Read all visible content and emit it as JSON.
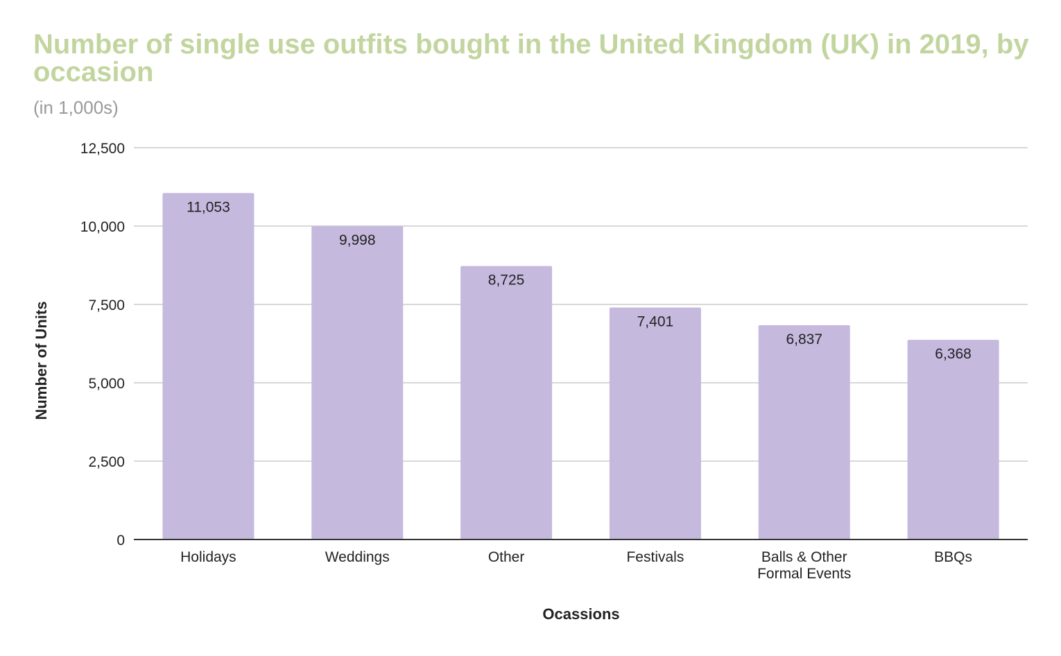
{
  "chart_data": {
    "type": "bar",
    "title": "Number of single use outfits bought in the United Kingdom (UK) in 2019, by occasion",
    "subtitle": "(in 1,000s)",
    "xlabel": "Ocassions",
    "ylabel": "Number of Units",
    "categories": [
      [
        "Holidays"
      ],
      [
        "Weddings"
      ],
      [
        "Other"
      ],
      [
        "Festivals"
      ],
      [
        "Balls & Other",
        "Formal Events"
      ],
      [
        "BBQs"
      ]
    ],
    "values": [
      11053,
      9998,
      8725,
      7401,
      6837,
      6368
    ],
    "value_labels": [
      "11,053",
      "9,998",
      "8,725",
      "7,401",
      "6,837",
      "6,368"
    ],
    "yticks": [
      {
        "value": 0,
        "label": "0"
      },
      {
        "value": 2500,
        "label": "2,500"
      },
      {
        "value": 5000,
        "label": "5,000"
      },
      {
        "value": 7500,
        "label": "7,500"
      },
      {
        "value": 10000,
        "label": "10,000"
      },
      {
        "value": 12500,
        "label": "12,500"
      }
    ],
    "ylim": [
      0,
      12500
    ],
    "grid": true,
    "legend": "none",
    "colors": {
      "bar": "#c5b9de",
      "title": "#c2d59f",
      "subtitle": "#999999",
      "grid": "#cccccc",
      "axis": "#333333",
      "text": "#222222"
    }
  }
}
